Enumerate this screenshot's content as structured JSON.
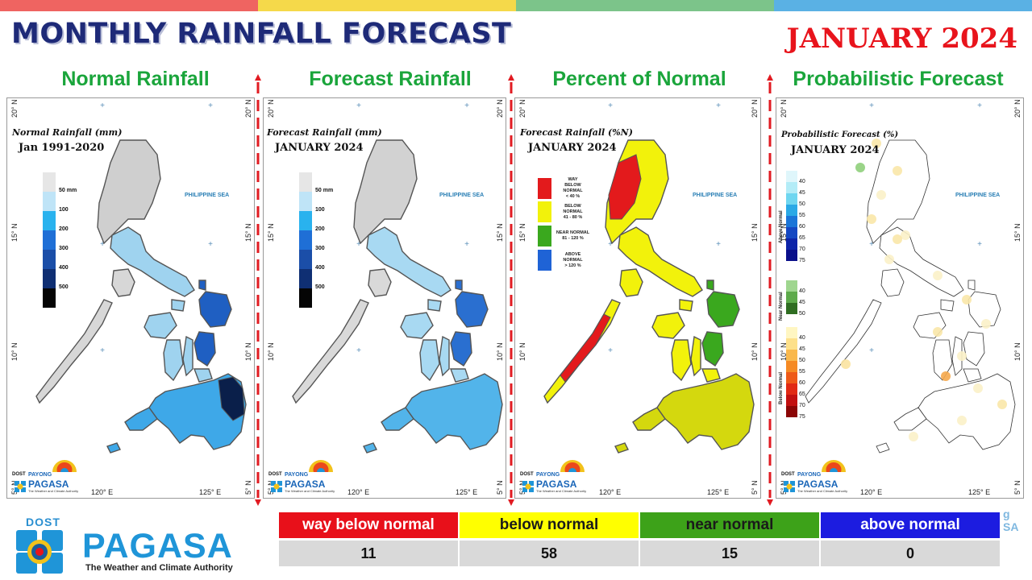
{
  "header": {
    "title": "MONTHLY RAINFALL FORECAST",
    "period": "JANUARY 2024",
    "stripe_colors": [
      "#ef6461",
      "#f5d94a",
      "#7cc48a",
      "#5ab1e4"
    ]
  },
  "panels": [
    {
      "heading": "Normal Rainfall",
      "map_title": "Normal Rainfall (mm)",
      "map_subtitle": "Jan 1991-2020",
      "legend_labels": [
        "50 mm",
        "100",
        "200",
        "300",
        "400",
        "500"
      ],
      "legend_colors": [
        "#e6e6e6",
        "#bfe4f7",
        "#29b2ee",
        "#1f6fd6",
        "#1b4ea8",
        "#0f2f73",
        "#050505"
      ]
    },
    {
      "heading": "Forecast Rainfall",
      "map_title": "Forecast Rainfall (mm)",
      "map_subtitle": "JANUARY 2024",
      "legend_labels": [
        "50 mm",
        "100",
        "200",
        "300",
        "400",
        "500"
      ],
      "legend_colors": [
        "#e6e6e6",
        "#bfe4f7",
        "#29b2ee",
        "#1f6fd6",
        "#1b4ea8",
        "#0f2f73",
        "#050505"
      ]
    },
    {
      "heading": "Percent of Normal",
      "map_title": "Forecast Rainfall (%N)",
      "map_subtitle": "JANUARY 2024",
      "legend_items": [
        {
          "l1": "WAY",
          "l2": "BELOW NORMAL",
          "l3": "< 40 %",
          "color": "#e31a1c"
        },
        {
          "l1": "BELOW NORMAL",
          "l2": "41 - 80 %",
          "l3": "",
          "color": "#f2f20b"
        },
        {
          "l1": "NEAR NORMAL",
          "l2": "81 - 120 %",
          "l3": "",
          "color": "#3aa81e"
        },
        {
          "l1": "ABOVE NORMAL",
          "l2": "> 120 %",
          "l3": "",
          "color": "#1f63d6"
        }
      ]
    },
    {
      "heading": "Probabilistic Forecast",
      "map_title": "Probabilistic Forecast (%)",
      "map_subtitle": "JANUARY 2024",
      "above_label": "Above Normal",
      "near_label": "Near Normal",
      "below_label": "Below Normal",
      "above_values": [
        "40",
        "45",
        "50",
        "55",
        "60",
        "65",
        "70",
        "75"
      ],
      "near_values": [
        "40",
        "45",
        "50"
      ],
      "below_values": [
        "40",
        "45",
        "50",
        "55",
        "60",
        "65",
        "70",
        "75"
      ],
      "above_colors": [
        "#dff6fb",
        "#b3ecf7",
        "#6fd6f0",
        "#2aa9e6",
        "#1a75d8",
        "#1447c2",
        "#0d24a8",
        "#0a0f8a"
      ],
      "near_colors": [
        "#9fd68f",
        "#5daa4b",
        "#2f6d22"
      ],
      "below_colors": [
        "#fff6c2",
        "#fde08a",
        "#f9b84c",
        "#f58a24",
        "#ee5a18",
        "#e12a14",
        "#c21010",
        "#8b0606"
      ]
    }
  ],
  "map_labels": {
    "sea": "PHILIPPINE SEA",
    "lat_20": "20° N",
    "lat_15": "15° N",
    "lat_10": "10° N",
    "lat_5": "5° N",
    "lon_120": "120° E",
    "lon_125": "125° E"
  },
  "panel_logo": {
    "dost": "DOST",
    "payong": "PAYONG",
    "pagasa": "PAGASA",
    "tagline": "The Weather and Climate Authority"
  },
  "footer_logo": {
    "dost": "DOST",
    "name": "PAGASA",
    "tagline": "The Weather and Climate Authority"
  },
  "summary": {
    "categories": [
      {
        "label": "way below normal",
        "count": "11",
        "color": "#e8101a",
        "text_color": "#ffffff"
      },
      {
        "label": "below normal",
        "count": "58",
        "color": "#ffff00",
        "text_color": "#1a1a1a"
      },
      {
        "label": "near normal",
        "count": "15",
        "color": "#3da219",
        "text_color": "#1a1a1a"
      },
      {
        "label": "above normal",
        "count": "0",
        "color": "#1c1ce0",
        "text_color": "#ffffff"
      }
    ]
  },
  "colors": {
    "divider": "#e11b22",
    "heading_green": "#1aa53b",
    "title_navy": "#1e2a78",
    "period_red": "#e8141c"
  }
}
